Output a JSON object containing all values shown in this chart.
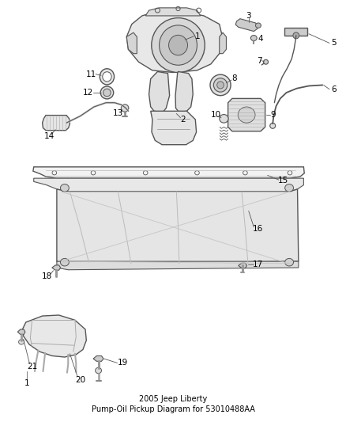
{
  "title": "2005 Jeep Liberty\nPump-Oil Pickup Diagram for 53010488AA",
  "title_fontsize": 7.0,
  "bg_color": "#ffffff",
  "line_color": "#555555",
  "label_fontsize": 7.5
}
